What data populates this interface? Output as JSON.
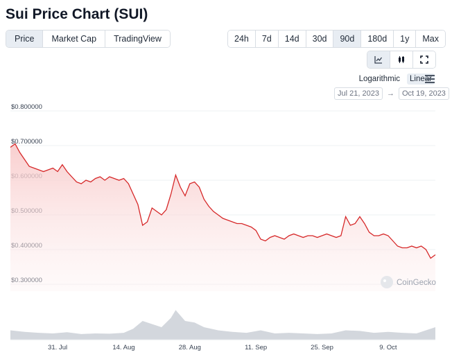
{
  "header": {
    "title": "Sui Price Chart (SUI)"
  },
  "tabs": [
    {
      "label": "Price",
      "active": true
    },
    {
      "label": "Market Cap",
      "active": false
    },
    {
      "label": "TradingView",
      "active": false
    }
  ],
  "ranges": [
    {
      "label": "24h",
      "active": false
    },
    {
      "label": "7d",
      "active": false
    },
    {
      "label": "14d",
      "active": false
    },
    {
      "label": "30d",
      "active": false
    },
    {
      "label": "90d",
      "active": true
    },
    {
      "label": "180d",
      "active": false
    },
    {
      "label": "1y",
      "active": false
    },
    {
      "label": "Max",
      "active": false
    }
  ],
  "chart_types": [
    {
      "icon": "line-chart-icon",
      "active": true
    },
    {
      "icon": "candlestick-icon",
      "active": false
    },
    {
      "icon": "fullscreen-icon",
      "active": false
    }
  ],
  "scale": {
    "log_label": "Logarithmic",
    "linear_label": "Linear",
    "active": "linear"
  },
  "date_range": {
    "from": "Jul 21, 2023",
    "arrow": "→",
    "to": "Oct 19, 2023"
  },
  "watermark": {
    "text": "CoinGecko"
  },
  "colors": {
    "line": "#d62728",
    "fill_top": "#f8c9c9",
    "volume": "#d3d7dd",
    "active_bg": "#e8edf3"
  },
  "chart_data": {
    "type": "area",
    "xlabel": "",
    "ylabel": "",
    "ylim": [
      0.28,
      0.82
    ],
    "x_range": [
      "2023-07-21",
      "2023-10-19"
    ],
    "yticks": [
      {
        "value": 0.3,
        "label": "$0.300000"
      },
      {
        "value": 0.4,
        "label": "$0.400000"
      },
      {
        "value": 0.5,
        "label": "$0.500000"
      },
      {
        "value": 0.6,
        "label": "$0.600000"
      },
      {
        "value": 0.7,
        "label": "$0.700000"
      },
      {
        "value": 0.8,
        "label": "$0.800000"
      }
    ],
    "xticks": [
      {
        "date": "2023-07-31",
        "label": "31. Jul"
      },
      {
        "date": "2023-08-14",
        "label": "14. Aug"
      },
      {
        "date": "2023-08-28",
        "label": "28. Aug"
      },
      {
        "date": "2023-09-11",
        "label": "11. Sep"
      },
      {
        "date": "2023-09-25",
        "label": "25. Sep"
      },
      {
        "date": "2023-10-09",
        "label": "9. Oct"
      }
    ],
    "grid": true,
    "series": [
      {
        "points": [
          [
            "2023-07-21",
            0.695
          ],
          [
            "2023-07-22",
            0.705
          ],
          [
            "2023-07-23",
            0.68
          ],
          [
            "2023-07-24",
            0.66
          ],
          [
            "2023-07-25",
            0.64
          ],
          [
            "2023-07-26",
            0.635
          ],
          [
            "2023-07-27",
            0.63
          ],
          [
            "2023-07-28",
            0.625
          ],
          [
            "2023-07-29",
            0.63
          ],
          [
            "2023-07-30",
            0.635
          ],
          [
            "2023-07-31",
            0.625
          ],
          [
            "2023-08-01",
            0.645
          ],
          [
            "2023-08-02",
            0.625
          ],
          [
            "2023-08-03",
            0.61
          ],
          [
            "2023-08-04",
            0.595
          ],
          [
            "2023-08-05",
            0.59
          ],
          [
            "2023-08-06",
            0.6
          ],
          [
            "2023-08-07",
            0.595
          ],
          [
            "2023-08-08",
            0.605
          ],
          [
            "2023-08-09",
            0.61
          ],
          [
            "2023-08-10",
            0.6
          ],
          [
            "2023-08-11",
            0.61
          ],
          [
            "2023-08-12",
            0.605
          ],
          [
            "2023-08-13",
            0.6
          ],
          [
            "2023-08-14",
            0.605
          ],
          [
            "2023-08-15",
            0.59
          ],
          [
            "2023-08-16",
            0.56
          ],
          [
            "2023-08-17",
            0.53
          ],
          [
            "2023-08-18",
            0.47
          ],
          [
            "2023-08-19",
            0.48
          ],
          [
            "2023-08-20",
            0.52
          ],
          [
            "2023-08-21",
            0.51
          ],
          [
            "2023-08-22",
            0.5
          ],
          [
            "2023-08-23",
            0.515
          ],
          [
            "2023-08-24",
            0.56
          ],
          [
            "2023-08-25",
            0.615
          ],
          [
            "2023-08-26",
            0.58
          ],
          [
            "2023-08-27",
            0.555
          ],
          [
            "2023-08-28",
            0.59
          ],
          [
            "2023-08-29",
            0.595
          ],
          [
            "2023-08-30",
            0.58
          ],
          [
            "2023-08-31",
            0.545
          ],
          [
            "2023-09-01",
            0.525
          ],
          [
            "2023-09-02",
            0.51
          ],
          [
            "2023-09-03",
            0.5
          ],
          [
            "2023-09-04",
            0.49
          ],
          [
            "2023-09-05",
            0.485
          ],
          [
            "2023-09-06",
            0.48
          ],
          [
            "2023-09-07",
            0.475
          ],
          [
            "2023-09-08",
            0.475
          ],
          [
            "2023-09-09",
            0.47
          ],
          [
            "2023-09-10",
            0.465
          ],
          [
            "2023-09-11",
            0.455
          ],
          [
            "2023-09-12",
            0.43
          ],
          [
            "2023-09-13",
            0.425
          ],
          [
            "2023-09-14",
            0.435
          ],
          [
            "2023-09-15",
            0.44
          ],
          [
            "2023-09-16",
            0.435
          ],
          [
            "2023-09-17",
            0.43
          ],
          [
            "2023-09-18",
            0.44
          ],
          [
            "2023-09-19",
            0.445
          ],
          [
            "2023-09-20",
            0.44
          ],
          [
            "2023-09-21",
            0.435
          ],
          [
            "2023-09-22",
            0.44
          ],
          [
            "2023-09-23",
            0.44
          ],
          [
            "2023-09-24",
            0.435
          ],
          [
            "2023-09-25",
            0.44
          ],
          [
            "2023-09-26",
            0.445
          ],
          [
            "2023-09-27",
            0.44
          ],
          [
            "2023-09-28",
            0.435
          ],
          [
            "2023-09-29",
            0.44
          ],
          [
            "2023-09-30",
            0.495
          ],
          [
            "2023-10-01",
            0.47
          ],
          [
            "2023-10-02",
            0.475
          ],
          [
            "2023-10-03",
            0.495
          ],
          [
            "2023-10-04",
            0.475
          ],
          [
            "2023-10-05",
            0.45
          ],
          [
            "2023-10-06",
            0.44
          ],
          [
            "2023-10-07",
            0.44
          ],
          [
            "2023-10-08",
            0.445
          ],
          [
            "2023-10-09",
            0.44
          ],
          [
            "2023-10-10",
            0.425
          ],
          [
            "2023-10-11",
            0.41
          ],
          [
            "2023-10-12",
            0.405
          ],
          [
            "2023-10-13",
            0.405
          ],
          [
            "2023-10-14",
            0.41
          ],
          [
            "2023-10-15",
            0.405
          ],
          [
            "2023-10-16",
            0.41
          ],
          [
            "2023-10-17",
            0.4
          ],
          [
            "2023-10-18",
            0.375
          ],
          [
            "2023-10-19",
            0.385
          ]
        ]
      }
    ],
    "volume": {
      "points": [
        [
          "2023-07-21",
          0.3
        ],
        [
          "2023-07-24",
          0.25
        ],
        [
          "2023-07-27",
          0.22
        ],
        [
          "2023-07-30",
          0.2
        ],
        [
          "2023-08-02",
          0.24
        ],
        [
          "2023-08-05",
          0.18
        ],
        [
          "2023-08-08",
          0.2
        ],
        [
          "2023-08-11",
          0.19
        ],
        [
          "2023-08-14",
          0.22
        ],
        [
          "2023-08-16",
          0.35
        ],
        [
          "2023-08-18",
          0.6
        ],
        [
          "2023-08-20",
          0.5
        ],
        [
          "2023-08-22",
          0.4
        ],
        [
          "2023-08-24",
          0.7
        ],
        [
          "2023-08-25",
          0.95
        ],
        [
          "2023-08-27",
          0.6
        ],
        [
          "2023-08-29",
          0.55
        ],
        [
          "2023-08-31",
          0.4
        ],
        [
          "2023-09-03",
          0.3
        ],
        [
          "2023-09-06",
          0.25
        ],
        [
          "2023-09-09",
          0.22
        ],
        [
          "2023-09-12",
          0.3
        ],
        [
          "2023-09-15",
          0.2
        ],
        [
          "2023-09-18",
          0.22
        ],
        [
          "2023-09-21",
          0.2
        ],
        [
          "2023-09-24",
          0.18
        ],
        [
          "2023-09-27",
          0.2
        ],
        [
          "2023-09-30",
          0.3
        ],
        [
          "2023-10-03",
          0.28
        ],
        [
          "2023-10-06",
          0.22
        ],
        [
          "2023-10-09",
          0.25
        ],
        [
          "2023-10-12",
          0.22
        ],
        [
          "2023-10-15",
          0.2
        ],
        [
          "2023-10-17",
          0.3
        ],
        [
          "2023-10-19",
          0.4
        ]
      ]
    }
  }
}
